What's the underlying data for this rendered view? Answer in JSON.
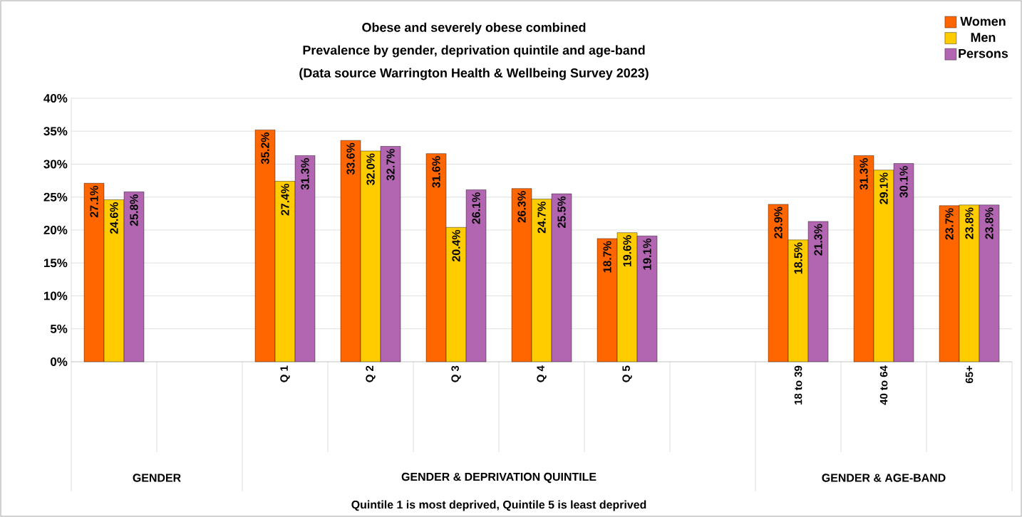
{
  "chart_data": {
    "type": "bar",
    "title": "Obese and severely obese combined",
    "subtitle": "Prevalence by gender, deprivation quintile and age-band",
    "categories": [
      null,
      null,
      "Q 1",
      "Q 2",
      "Q 3",
      "Q 4",
      "Q 5",
      null,
      "18 to 39",
      "40 to 64",
      "65+"
    ],
    "series": [
      {
        "name": "Women",
        "color": "#ff6600",
        "values": [
          27.1,
          null,
          35.2,
          33.6,
          31.6,
          26.3,
          18.7,
          null,
          23.9,
          31.3,
          23.7
        ],
        "value_labels": [
          "27.1%",
          null,
          "35.2%",
          "33.6%",
          "31.6%",
          "26.3%",
          "18.7%",
          null,
          "23.9%",
          "31.3%",
          "23.7%"
        ]
      },
      {
        "name": "Men",
        "color": "#ffcc00",
        "values": [
          24.6,
          null,
          27.4,
          32.0,
          20.4,
          24.7,
          19.6,
          null,
          18.5,
          29.1,
          23.8
        ],
        "value_labels": [
          "24.6%",
          null,
          "27.4%",
          "32.0%",
          "20.4%",
          "24.7%",
          "19.6%",
          null,
          "18.5%",
          "29.1%",
          "23.8%"
        ]
      },
      {
        "name": "Persons",
        "color": "#b266b2",
        "values": [
          25.8,
          null,
          31.3,
          32.7,
          26.1,
          25.5,
          19.1,
          null,
          21.3,
          30.1,
          23.8
        ],
        "value_labels": [
          "25.8%",
          null,
          "31.3%",
          "32.7%",
          "26.1%",
          "25.5%",
          "19.1%",
          null,
          "21.3%",
          "30.1%",
          "23.8%"
        ]
      }
    ],
    "ylim": [
      0,
      40
    ],
    "yticks": [
      {
        "value": 0,
        "label": "0%"
      },
      {
        "value": 5,
        "label": "5%"
      },
      {
        "value": 10,
        "label": "10%"
      },
      {
        "value": 15,
        "label": "15%"
      },
      {
        "value": 20,
        "label": "20%"
      },
      {
        "value": 25,
        "label": "25%"
      },
      {
        "value": 30,
        "label": "30%"
      },
      {
        "value": 35,
        "label": "35%"
      },
      {
        "value": 40,
        "label": "40%"
      }
    ],
    "grid": "y",
    "legend": "top right",
    "annotations": [
      "(Data source Warrington Health & Wellbeing Survey 2023)",
      "GENDER",
      "GENDER & DEPRIVATION QUINTILE",
      "GENDER & AGE-BAND",
      "Quintile 1 is most deprived, Quintile 5 is least deprived"
    ]
  }
}
